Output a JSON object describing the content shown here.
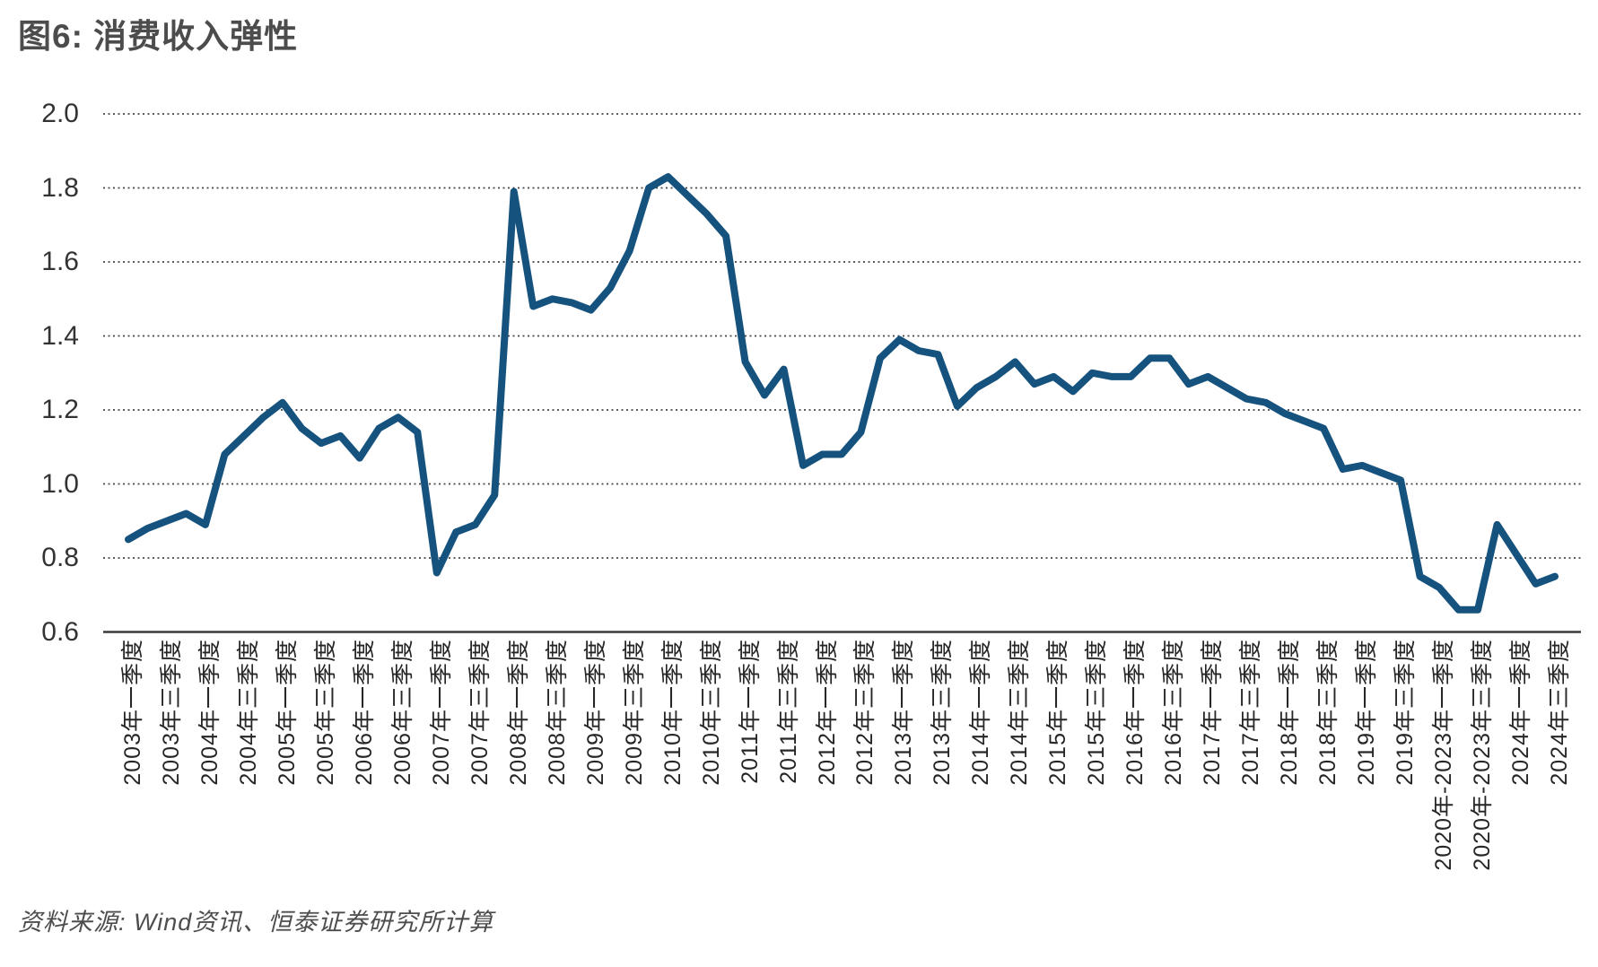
{
  "header": {
    "title": "图6: 消费收入弹性"
  },
  "footer": {
    "source_note": "资料来源: Wind资讯、恒泰证券研究所计算"
  },
  "colors": {
    "line": "#15527e",
    "title_text": "#4c4c4c",
    "axis_text": "#262626",
    "y_axis_text": "#333333",
    "gridline": "#454545",
    "axis_line": "#3a3a3a",
    "background": "#ffffff"
  },
  "chart_data": {
    "type": "line",
    "title": "图6: 消费收入弹性",
    "xlabel": "",
    "ylabel": "",
    "ylim": [
      0.6,
      2.0
    ],
    "y_ticks": [
      "2.0",
      "1.8",
      "1.6",
      "1.4",
      "1.2",
      "1.0",
      "0.8",
      "0.6"
    ],
    "grid": "horizontal-dotted",
    "legend_position": "none",
    "series_name": "消费收入弹性",
    "tick_every_n_points": 2,
    "x_tick_labels": [
      "2003年一季度",
      "2003年三季度",
      "2004年一季度",
      "2004年三季度",
      "2005年一季度",
      "2005年三季度",
      "2006年一季度",
      "2006年三季度",
      "2007年一季度",
      "2007年三季度",
      "2008年一季度",
      "2008年三季度",
      "2009年一季度",
      "2009年三季度",
      "2010年一季度",
      "2010年三季度",
      "2011年一季度",
      "2011年三季度",
      "2012年一季度",
      "2012年三季度",
      "2013年一季度",
      "2013年三季度",
      "2014年一季度",
      "2014年三季度",
      "2015年一季度",
      "2015年三季度",
      "2016年一季度",
      "2016年三季度",
      "2017年一季度",
      "2017年三季度",
      "2018年一季度",
      "2018年三季度",
      "2019年一季度",
      "2019年三季度",
      "2020年-2023年一季度",
      "2020年-2023年三季度",
      "2024年一季度",
      "2024年三季度"
    ],
    "values": [
      0.85,
      0.88,
      0.9,
      0.92,
      0.89,
      1.08,
      1.13,
      1.18,
      1.22,
      1.15,
      1.11,
      1.13,
      1.07,
      1.15,
      1.18,
      1.14,
      0.76,
      0.87,
      0.89,
      0.97,
      1.79,
      1.48,
      1.5,
      1.49,
      1.47,
      1.53,
      1.63,
      1.8,
      1.83,
      1.78,
      1.73,
      1.67,
      1.33,
      1.24,
      1.31,
      1.05,
      1.08,
      1.08,
      1.14,
      1.34,
      1.39,
      1.36,
      1.35,
      1.21,
      1.26,
      1.29,
      1.33,
      1.27,
      1.29,
      1.25,
      1.3,
      1.29,
      1.29,
      1.34,
      1.34,
      1.27,
      1.29,
      1.26,
      1.23,
      1.22,
      1.19,
      1.17,
      1.15,
      1.04,
      1.05,
      1.03,
      1.01,
      0.75,
      0.72,
      0.66,
      0.66,
      0.89,
      0.81,
      0.73,
      0.75
    ]
  }
}
